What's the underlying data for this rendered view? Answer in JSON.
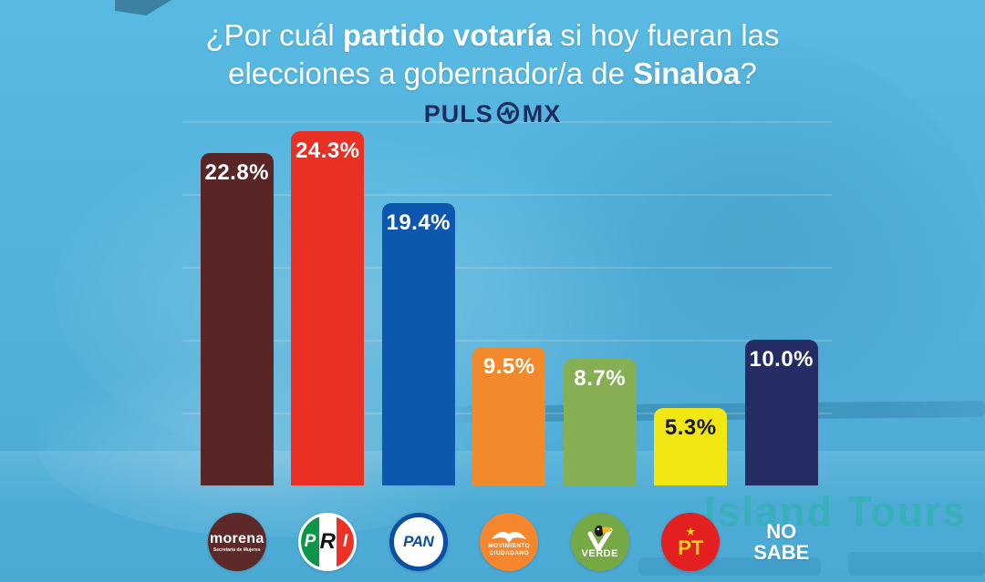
{
  "title": {
    "l1a": "¿Por cuál ",
    "l1b": "partido votaría",
    "l1c": " si hoy fueran las",
    "l2a": "elecciones a gobernador/a de ",
    "l2b": "Sinaloa",
    "l2c": "?"
  },
  "brand": {
    "part1": "PULS",
    "part2": "MX",
    "color": "#1d2c5e"
  },
  "background": {
    "watermark": "Island Tours"
  },
  "chart_data": {
    "type": "bar",
    "title": "¿Por cuál partido votaría si hoy fueran las elecciones a gobernador/a de Sinaloa?",
    "xlabel": "",
    "ylabel": "",
    "unit": "%",
    "ylim": [
      0,
      25
    ],
    "gridlines": true,
    "gridline_interval": 5,
    "legend_position": "logos-below-bars",
    "categories": [
      "Morena",
      "PRI",
      "PAN",
      "Movimiento Ciudadano",
      "Partido Verde",
      "PT",
      "No sabe"
    ],
    "values": [
      22.8,
      24.3,
      19.4,
      9.5,
      8.7,
      5.3,
      10.0
    ],
    "parties": [
      {
        "id": "morena",
        "name": "Morena",
        "value": 22.8,
        "label": "22.8%",
        "color": "#5a2525",
        "label_color": "#ffffff",
        "logo_text": "morena",
        "logo_subtext": "Secretaría de Mujeres"
      },
      {
        "id": "pri",
        "name": "PRI",
        "value": 24.3,
        "label": "24.3%",
        "color": "#ea2f23",
        "label_color": "#ffffff",
        "logo_letters": [
          "P",
          "R",
          "I"
        ]
      },
      {
        "id": "pan",
        "name": "PAN",
        "value": 19.4,
        "label": "19.4%",
        "color": "#0e57ae",
        "label_color": "#ffffff",
        "logo_text": "PAN"
      },
      {
        "id": "mc",
        "name": "Movimiento Ciudadano",
        "value": 9.5,
        "label": "9.5%",
        "color": "#f18a2d",
        "label_color": "#ffffff",
        "logo_line1": "MOVIMIENTO",
        "logo_line2": "CIUDADANO"
      },
      {
        "id": "verde",
        "name": "Partido Verde",
        "value": 8.7,
        "label": "8.7%",
        "color": "#86ae53",
        "label_color": "#ffffff",
        "logo_text": "VERDE"
      },
      {
        "id": "pt",
        "name": "PT",
        "value": 5.3,
        "label": "5.3%",
        "color": "#f2e713",
        "label_color": "#16162e",
        "logo_star": "★",
        "logo_text": "PT"
      },
      {
        "id": "nosabe",
        "name": "No sabe",
        "value": 10.0,
        "label": "10.0%",
        "color": "#252c63",
        "label_color": "#ffffff",
        "logo_line1": "NO",
        "logo_line2": "SABE"
      }
    ]
  }
}
